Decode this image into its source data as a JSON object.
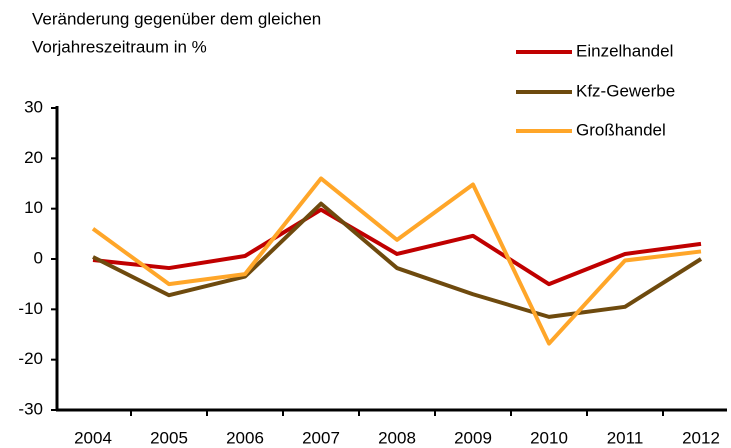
{
  "chart_data": {
    "type": "line",
    "ylabel_lines": [
      "Veränderung gegenüber dem gleichen",
      "Vorjahreszeitraum in %"
    ],
    "categories": [
      "2004",
      "2005",
      "2006",
      "2007",
      "2008",
      "2009",
      "2010",
      "2011",
      "2012"
    ],
    "series": [
      {
        "name": "Einzelhandel",
        "color": "#c00000",
        "values": [
          -0.2,
          -1.8,
          0.6,
          9.8,
          1.0,
          4.6,
          -5.0,
          1.0,
          3.0
        ]
      },
      {
        "name": "Kfz-Gewerbe",
        "color": "#6e4a0e",
        "values": [
          0.4,
          -7.2,
          -3.5,
          11.0,
          -1.8,
          -7.0,
          -11.5,
          -9.5,
          0.0
        ]
      },
      {
        "name": "Großhandel",
        "color": "#ffa629",
        "values": [
          6.0,
          -5.0,
          -3.0,
          16.0,
          3.8,
          14.8,
          -16.8,
          -0.3,
          1.5
        ]
      }
    ],
    "ylim": [
      -30,
      30
    ],
    "yticks": [
      -30,
      -20,
      -10,
      0,
      10,
      20,
      30
    ],
    "legend": "top-right"
  }
}
